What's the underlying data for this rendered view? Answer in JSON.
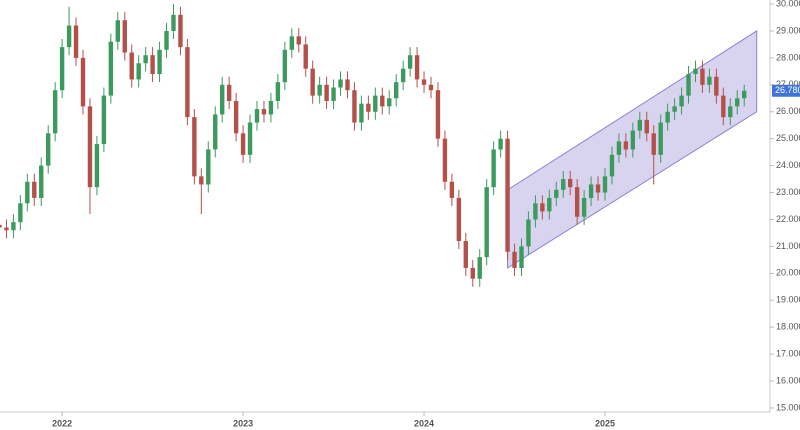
{
  "chart_data": {
    "type": "candlestick",
    "categories": [
      null,
      null,
      null,
      null,
      null,
      null,
      null,
      null,
      null,
      "2022",
      null,
      null,
      null,
      null,
      null,
      null,
      null,
      null,
      null,
      null,
      null,
      null,
      null,
      null,
      null,
      null,
      null,
      null,
      null,
      null,
      null,
      null,
      null,
      null,
      null,
      "2023",
      null,
      null,
      null,
      null,
      null,
      null,
      null,
      null,
      null,
      null,
      null,
      null,
      null,
      null,
      null,
      null,
      null,
      null,
      null,
      null,
      null,
      null,
      null,
      null,
      null,
      "2024",
      null,
      null,
      null,
      null,
      null,
      null,
      null,
      null,
      null,
      null,
      null,
      null,
      null,
      null,
      null,
      null,
      null,
      null,
      null,
      null,
      null,
      null,
      null,
      null,
      null,
      "2025",
      null,
      null,
      null,
      null,
      null,
      null,
      null,
      null,
      null,
      null,
      null,
      null,
      null,
      null,
      null,
      null,
      null,
      null,
      null,
      null
    ],
    "open": [
      21.8,
      21.7,
      21.6,
      21.9,
      22.6,
      23.4,
      22.8,
      24.0,
      25.2,
      26.8,
      28.4,
      29.2,
      28.0,
      26.2,
      23.2,
      24.8,
      26.6,
      28.6,
      29.4,
      28.2,
      27.2,
      27.8,
      28.1,
      27.4,
      28.3,
      29.0,
      29.6,
      28.4,
      25.8,
      23.6,
      23.3,
      24.6,
      25.9,
      27.0,
      26.4,
      25.2,
      24.4,
      25.6,
      26.1,
      25.9,
      26.4,
      27.1,
      28.3,
      28.8,
      28.5,
      27.6,
      26.6,
      27.0,
      26.4,
      26.9,
      27.2,
      26.8,
      25.6,
      26.3,
      26.0,
      26.6,
      26.2,
      26.5,
      27.1,
      27.6,
      28.1,
      27.2,
      27.0,
      26.8,
      25.0,
      23.4,
      22.8,
      21.2,
      20.2,
      19.8,
      20.6,
      23.2,
      24.6,
      25.0,
      20.8,
      20.2,
      21.0,
      22.0,
      22.6,
      22.3,
      22.8,
      23.1,
      23.5,
      23.2,
      22.1,
      22.8,
      23.3,
      23.0,
      23.6,
      24.4,
      24.9,
      24.6,
      25.3,
      25.7,
      25.2,
      24.4,
      25.6,
      26.0,
      26.2,
      26.6,
      27.4,
      27.6,
      27.0,
      27.3,
      26.6,
      25.8,
      26.2,
      26.5
    ],
    "high": [
      22.1,
      22.0,
      22.2,
      22.9,
      23.7,
      23.7,
      24.3,
      25.5,
      27.1,
      28.7,
      29.9,
      29.5,
      28.3,
      26.5,
      25.1,
      26.9,
      28.9,
      29.7,
      29.7,
      28.5,
      28.1,
      28.4,
      28.4,
      28.6,
      29.3,
      30.0,
      29.9,
      28.7,
      26.1,
      23.9,
      24.9,
      26.2,
      27.3,
      27.3,
      26.7,
      25.5,
      25.9,
      26.4,
      26.4,
      26.7,
      27.4,
      28.6,
      29.1,
      29.1,
      28.8,
      27.9,
      27.3,
      27.3,
      27.2,
      27.5,
      27.5,
      27.1,
      26.6,
      26.6,
      26.9,
      26.9,
      26.8,
      27.4,
      27.9,
      28.4,
      28.4,
      27.5,
      27.3,
      27.1,
      25.3,
      23.7,
      23.1,
      21.5,
      20.5,
      20.9,
      23.5,
      24.9,
      25.3,
      25.3,
      21.1,
      21.3,
      22.3,
      22.9,
      22.9,
      23.1,
      23.4,
      23.8,
      23.8,
      23.5,
      23.1,
      23.6,
      23.6,
      23.9,
      24.7,
      25.2,
      25.2,
      25.6,
      26.0,
      26.0,
      25.5,
      25.9,
      26.3,
      26.5,
      26.9,
      27.7,
      27.9,
      27.9,
      27.6,
      27.6,
      26.9,
      26.5,
      26.8,
      27.0
    ],
    "low": [
      21.4,
      21.3,
      21.3,
      21.6,
      22.3,
      22.5,
      22.5,
      23.7,
      24.9,
      26.5,
      28.1,
      27.7,
      25.9,
      22.2,
      22.9,
      24.5,
      26.3,
      28.3,
      27.9,
      26.9,
      26.9,
      27.5,
      27.1,
      27.1,
      28.0,
      28.7,
      28.1,
      25.5,
      23.3,
      22.2,
      23.0,
      24.3,
      25.6,
      26.1,
      24.9,
      24.1,
      24.1,
      25.3,
      25.6,
      25.6,
      26.1,
      26.8,
      28.0,
      28.2,
      27.3,
      26.3,
      26.3,
      26.1,
      26.1,
      26.6,
      26.5,
      25.3,
      25.3,
      25.7,
      25.7,
      25.9,
      25.9,
      26.2,
      26.8,
      27.3,
      26.9,
      26.7,
      26.5,
      24.7,
      23.1,
      22.5,
      20.9,
      19.9,
      19.5,
      19.5,
      20.3,
      22.9,
      24.3,
      20.5,
      19.9,
      19.9,
      20.7,
      21.7,
      22.0,
      22.0,
      22.5,
      22.8,
      22.9,
      21.8,
      21.8,
      22.5,
      22.7,
      22.7,
      23.3,
      24.1,
      24.3,
      24.3,
      25.0,
      24.9,
      23.3,
      24.1,
      25.3,
      25.7,
      25.9,
      26.3,
      27.1,
      26.7,
      26.7,
      26.3,
      25.5,
      25.5,
      25.9,
      26.2
    ],
    "close": [
      21.7,
      21.6,
      21.9,
      22.6,
      23.4,
      22.8,
      24.0,
      25.2,
      26.8,
      28.4,
      29.2,
      28.0,
      26.2,
      23.2,
      24.8,
      26.6,
      28.6,
      29.4,
      28.2,
      27.2,
      27.8,
      28.1,
      27.4,
      28.3,
      29.0,
      29.6,
      28.4,
      25.8,
      23.6,
      23.3,
      24.6,
      25.9,
      27.0,
      26.4,
      25.2,
      24.4,
      25.6,
      26.1,
      25.9,
      26.4,
      27.1,
      28.3,
      28.8,
      28.5,
      27.6,
      26.6,
      27.0,
      26.4,
      26.9,
      27.2,
      26.8,
      25.6,
      26.3,
      26.0,
      26.6,
      26.2,
      26.5,
      27.1,
      27.6,
      28.1,
      27.2,
      27.0,
      26.8,
      25.0,
      23.4,
      22.8,
      21.2,
      20.2,
      19.8,
      20.6,
      23.2,
      24.6,
      25.0,
      20.8,
      20.2,
      21.0,
      22.0,
      22.6,
      22.3,
      22.8,
      23.1,
      23.5,
      23.2,
      22.1,
      22.8,
      23.3,
      23.0,
      23.6,
      24.4,
      24.9,
      24.6,
      25.3,
      25.7,
      25.2,
      24.4,
      25.6,
      26.0,
      26.2,
      26.6,
      27.4,
      27.6,
      27.0,
      27.3,
      26.6,
      25.8,
      26.2,
      26.5,
      26.78
    ],
    "up_color": "#3d9a5e",
    "down_color": "#b3504a",
    "ylim": [
      14.85,
      30.15
    ],
    "yticks": [
      {
        "value": 15,
        "label": "15.000"
      },
      {
        "value": 16,
        "label": "16.000"
      },
      {
        "value": 17,
        "label": "17.000"
      },
      {
        "value": 18,
        "label": "18.000"
      },
      {
        "value": 19,
        "label": "19.000"
      },
      {
        "value": 20,
        "label": "20.000"
      },
      {
        "value": 21,
        "label": "21.000"
      },
      {
        "value": 22,
        "label": "22.000"
      },
      {
        "value": 23,
        "label": "23.000"
      },
      {
        "value": 24,
        "label": "24.000"
      },
      {
        "value": 25,
        "label": "25.000"
      },
      {
        "value": 26,
        "label": "26.000"
      },
      {
        "value": 27,
        "label": "27.000"
      },
      {
        "value": 28,
        "label": "28.000"
      },
      {
        "value": 29,
        "label": "29.000"
      },
      {
        "value": 30,
        "label": "30.000"
      }
    ],
    "channel": {
      "x": [
        73,
        108.8
      ],
      "upper": [
        23.1,
        29.0
      ],
      "lower": [
        20.2,
        26.0
      ],
      "color": "#cbc5ea"
    },
    "last_price": {
      "value": 26.78,
      "label": "26.780",
      "color": "#3f73d6"
    }
  }
}
